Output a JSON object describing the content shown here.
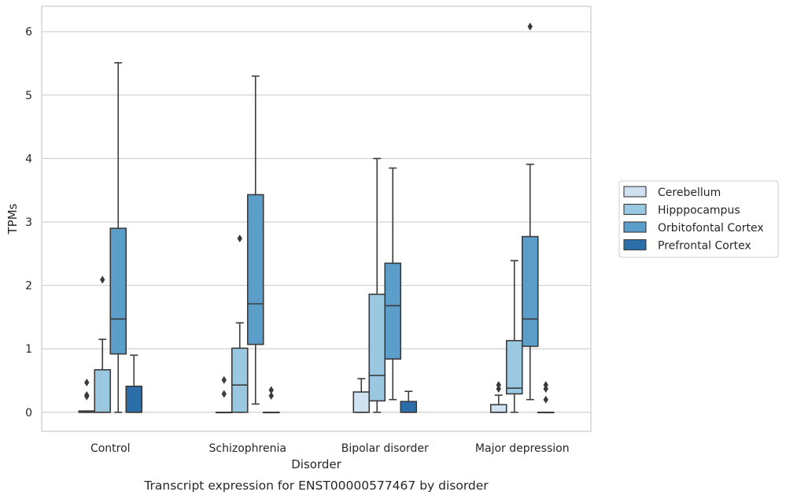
{
  "chart_data": {
    "type": "box",
    "xlabel": "Disorder",
    "ylabel": "TPMs",
    "caption": "Transcript expression for ENST00000577467 by disorder",
    "ylim": [
      -0.3,
      6.4
    ],
    "yticks": [
      0,
      1,
      2,
      3,
      4,
      5,
      6
    ],
    "grid": "horizontal",
    "legend_position": "right",
    "categories": [
      "Control",
      "Schizophrenia",
      "Bipolar disorder",
      "Major depression"
    ],
    "series": [
      {
        "name": "Cerebellum",
        "color": "#d0e2f2",
        "boxes": [
          {
            "q1": 0.0,
            "median": 0.0,
            "q3": 0.02,
            "whisker_low": 0.0,
            "whisker_high": 0.02,
            "outliers": [
              0.25,
              0.27,
              0.47
            ]
          },
          {
            "q1": 0.0,
            "median": 0.0,
            "q3": 0.0,
            "whisker_low": 0.0,
            "whisker_high": 0.0,
            "outliers": [
              0.29,
              0.51
            ]
          },
          {
            "q1": 0.0,
            "median": 0.0,
            "q3": 0.32,
            "whisker_low": 0.0,
            "whisker_high": 0.53,
            "outliers": []
          },
          {
            "q1": 0.0,
            "median": 0.0,
            "q3": 0.12,
            "whisker_low": 0.0,
            "whisker_high": 0.27,
            "outliers": [
              0.37,
              0.43
            ]
          }
        ]
      },
      {
        "name": "Hipppocampus",
        "color": "#9ac8e0",
        "boxes": [
          {
            "q1": 0.0,
            "median": 0.0,
            "q3": 0.67,
            "whisker_low": 0.0,
            "whisker_high": 1.15,
            "outliers": [
              2.09
            ]
          },
          {
            "q1": 0.0,
            "median": 0.43,
            "q3": 1.01,
            "whisker_low": 0.0,
            "whisker_high": 1.41,
            "outliers": [
              2.74
            ]
          },
          {
            "q1": 0.18,
            "median": 0.58,
            "q3": 1.86,
            "whisker_low": 0.0,
            "whisker_high": 4.0,
            "outliers": []
          },
          {
            "q1": 0.29,
            "median": 0.38,
            "q3": 1.13,
            "whisker_low": 0.0,
            "whisker_high": 2.39,
            "outliers": []
          }
        ]
      },
      {
        "name": "Orbitofontal Cortex",
        "color": "#5a9ec9",
        "boxes": [
          {
            "q1": 0.92,
            "median": 1.47,
            "q3": 2.9,
            "whisker_low": 0.0,
            "whisker_high": 5.51,
            "outliers": []
          },
          {
            "q1": 1.07,
            "median": 1.71,
            "q3": 3.43,
            "whisker_low": 0.13,
            "whisker_high": 5.3,
            "outliers": []
          },
          {
            "q1": 0.84,
            "median": 1.68,
            "q3": 2.35,
            "whisker_low": 0.2,
            "whisker_high": 3.85,
            "outliers": []
          },
          {
            "q1": 1.04,
            "median": 1.47,
            "q3": 2.77,
            "whisker_low": 0.2,
            "whisker_high": 3.91,
            "outliers": [
              6.08
            ]
          }
        ]
      },
      {
        "name": "Prefrontal Cortex",
        "color": "#2b6ea9",
        "boxes": [
          {
            "q1": 0.0,
            "median": 0.0,
            "q3": 0.41,
            "whisker_low": 0.0,
            "whisker_high": 0.9,
            "outliers": []
          },
          {
            "q1": 0.0,
            "median": 0.0,
            "q3": 0.0,
            "whisker_low": 0.0,
            "whisker_high": 0.0,
            "outliers": [
              0.26,
              0.35
            ]
          },
          {
            "q1": 0.0,
            "median": 0.0,
            "q3": 0.17,
            "whisker_low": 0.0,
            "whisker_high": 0.33,
            "outliers": []
          },
          {
            "q1": 0.0,
            "median": 0.0,
            "q3": 0.0,
            "whisker_low": 0.0,
            "whisker_high": 0.0,
            "outliers": [
              0.2,
              0.37,
              0.43
            ]
          }
        ]
      }
    ]
  }
}
